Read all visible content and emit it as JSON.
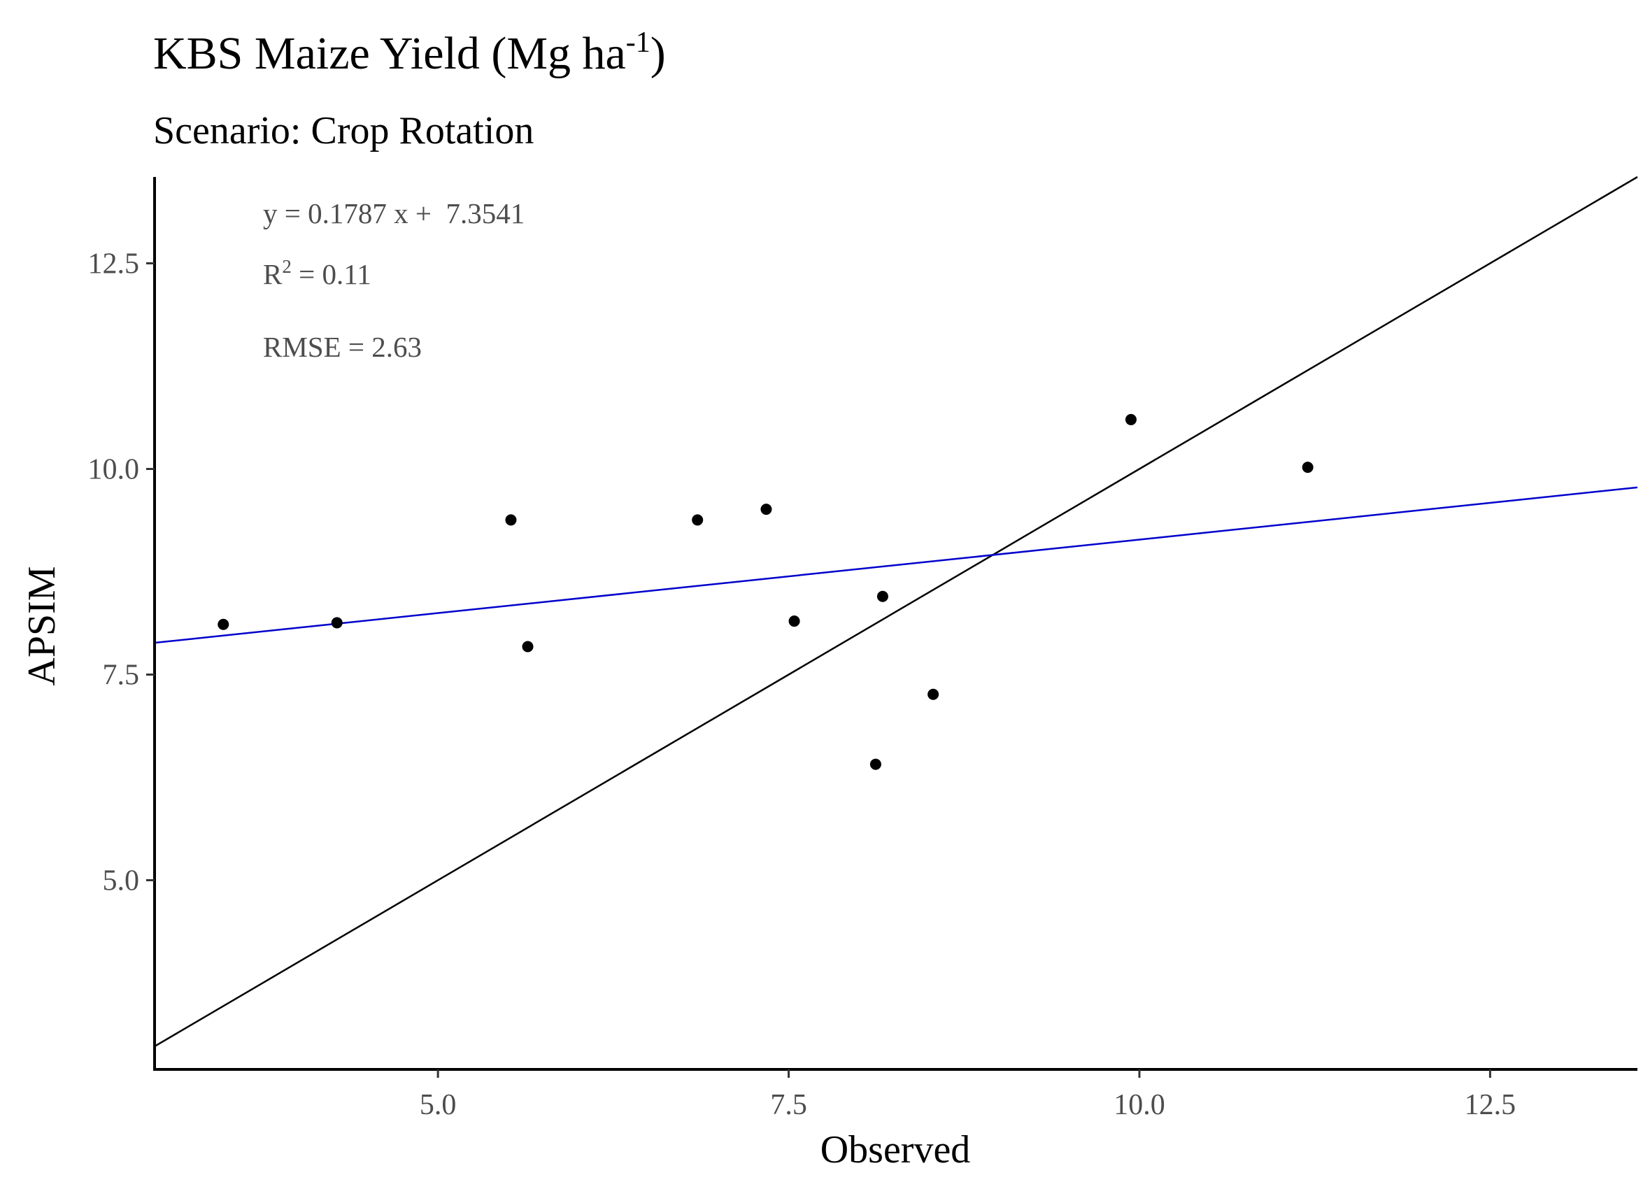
{
  "chart_data": {
    "type": "scatter",
    "title_main": "KBS Maize Yield (Mg ha",
    "title_sup": "-1",
    "title_end": ")",
    "subtitle": "Scenario: Crop Rotation",
    "xlabel": "Observed",
    "ylabel": "APSIM",
    "xlim": [
      2.98,
      13.55
    ],
    "ylim": [
      2.7,
      13.55
    ],
    "x_ticks": [
      5.0,
      7.5,
      10.0,
      12.5
    ],
    "x_tick_labels": [
      "5.0",
      "7.5",
      "10.0",
      "12.5"
    ],
    "y_ticks": [
      5.0,
      7.5,
      10.0,
      12.5
    ],
    "y_tick_labels": [
      "5.0",
      "7.5",
      "10.0",
      "12.5"
    ],
    "grid": false,
    "points": [
      {
        "x": 3.47,
        "y": 8.11
      },
      {
        "x": 4.28,
        "y": 8.13
      },
      {
        "x": 5.52,
        "y": 9.38
      },
      {
        "x": 5.64,
        "y": 7.84
      },
      {
        "x": 6.85,
        "y": 9.38
      },
      {
        "x": 7.34,
        "y": 9.51
      },
      {
        "x": 7.54,
        "y": 8.15
      },
      {
        "x": 8.12,
        "y": 6.41
      },
      {
        "x": 8.17,
        "y": 8.45
      },
      {
        "x": 8.53,
        "y": 7.26
      },
      {
        "x": 9.94,
        "y": 10.6
      },
      {
        "x": 11.2,
        "y": 10.02
      }
    ],
    "regression_line": {
      "slope": 0.1787,
      "intercept": 7.3541,
      "color": "#0000cc"
    },
    "identity_line": {
      "slope": 1,
      "intercept": 0,
      "color": "#000000"
    },
    "annotations": {
      "equation": "y = 0.1787 x +  7.3541",
      "r2_label": "R",
      "r2_sup": "2",
      "r2_value": " = 0.11",
      "rmse": "RMSE = 2.63"
    }
  }
}
